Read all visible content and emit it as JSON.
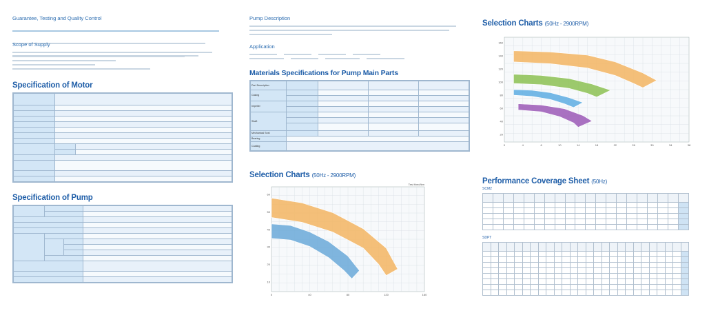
{
  "col1": {
    "guarantee_title": "Guarantee, Testing and Quality Control",
    "scope_title": "Scope of Supply",
    "motor_title": "Specification of Motor",
    "pump_title": "Specification of Pump"
  },
  "col2": {
    "pump_desc_title": "Pump Description",
    "application_title": "Application",
    "materials_title": "Materials Specifications for Pump Main Parts",
    "materials_rows": [
      "Part Description",
      "Casing",
      "Impeller",
      "Shaft",
      "Mechanical Seal",
      "Bearing",
      "Coating"
    ],
    "chart_title": "Selection Charts",
    "chart_subtitle": "(50Hz - 2900RPM)",
    "chart_note": "Test fixed/km"
  },
  "col3": {
    "chart_title": "Selection Charts",
    "chart_subtitle": "(50Hz - 2900RPM)",
    "perf_title": "Performance Coverage Sheet",
    "perf_subtitle": "(50Hz)",
    "table1_title": "SCM2",
    "table2_title": "SDPT"
  },
  "chart_data": [
    {
      "type": "area",
      "title": "Selection Charts",
      "subtitle": "(50Hz - 2900RPM)",
      "x_ticks": [
        "0",
        "40",
        "80",
        "120",
        "160"
      ],
      "y_ticks": [
        "60",
        "50",
        "40",
        "30",
        "20",
        "10"
      ],
      "xlim": [
        0,
        200
      ],
      "ylim": [
        0,
        65
      ],
      "grid": true,
      "series": [
        {
          "color": "#f3b562",
          "upper": [
            [
              0,
              58
            ],
            [
              40,
              55
            ],
            [
              80,
              49
            ],
            [
              120,
              39
            ],
            [
              150,
              27
            ],
            [
              165,
              14
            ]
          ],
          "lower": [
            [
              0,
              46
            ],
            [
              40,
              43
            ],
            [
              80,
              37
            ],
            [
              120,
              27
            ],
            [
              140,
              17
            ],
            [
              150,
              10
            ]
          ]
        },
        {
          "color": "#6aa9d8",
          "upper": [
            [
              0,
              42
            ],
            [
              25,
              41
            ],
            [
              50,
              37
            ],
            [
              75,
              31
            ],
            [
              100,
              22
            ],
            [
              115,
              13
            ]
          ],
          "lower": [
            [
              0,
              33
            ],
            [
              25,
              32
            ],
            [
              50,
              28
            ],
            [
              75,
              21
            ],
            [
              95,
              13
            ],
            [
              105,
              8
            ]
          ]
        }
      ]
    },
    {
      "type": "area",
      "title": "Selection Charts",
      "subtitle": "(50Hz - 2900RPM)",
      "x_ticks": [
        "0",
        "4",
        "6",
        "10",
        "14",
        "18",
        "22",
        "26",
        "30",
        "34",
        "38"
      ],
      "y_ticks": [
        "160",
        "140",
        "120",
        "100",
        "80",
        "60",
        "40",
        "20"
      ],
      "xlim": [
        0,
        40
      ],
      "ylim": [
        0,
        170
      ],
      "grid": true,
      "series": [
        {
          "color": "#f3b562",
          "upper": [
            [
              2,
              148
            ],
            [
              10,
              146
            ],
            [
              18,
              141
            ],
            [
              24,
              130
            ],
            [
              30,
              112
            ],
            [
              33,
              100
            ]
          ],
          "lower": [
            [
              2,
              130
            ],
            [
              10,
              127
            ],
            [
              18,
              120
            ],
            [
              24,
              108
            ],
            [
              28,
              95
            ],
            [
              30,
              88
            ]
          ]
        },
        {
          "color": "#8cc152",
          "upper": [
            [
              2,
              110
            ],
            [
              8,
              108
            ],
            [
              14,
              103
            ],
            [
              19,
              94
            ],
            [
              23,
              84
            ]
          ],
          "lower": [
            [
              2,
              95
            ],
            [
              8,
              93
            ],
            [
              14,
              87
            ],
            [
              18,
              79
            ],
            [
              20,
              73
            ]
          ]
        },
        {
          "color": "#5dade2",
          "upper": [
            [
              2,
              85
            ],
            [
              6,
              84
            ],
            [
              10,
              80
            ],
            [
              14,
              72
            ],
            [
              17,
              64
            ]
          ],
          "lower": [
            [
              2,
              76
            ],
            [
              6,
              74
            ],
            [
              10,
              69
            ],
            [
              13,
              62
            ],
            [
              15,
              56
            ]
          ]
        },
        {
          "color": "#9b59b6",
          "upper": [
            [
              3,
              62
            ],
            [
              8,
              60
            ],
            [
              13,
              54
            ],
            [
              17,
              43
            ],
            [
              19,
              34
            ]
          ],
          "lower": [
            [
              3,
              52
            ],
            [
              8,
              49
            ],
            [
              12,
              41
            ],
            [
              15,
              31
            ],
            [
              16,
              24
            ]
          ]
        }
      ]
    }
  ]
}
